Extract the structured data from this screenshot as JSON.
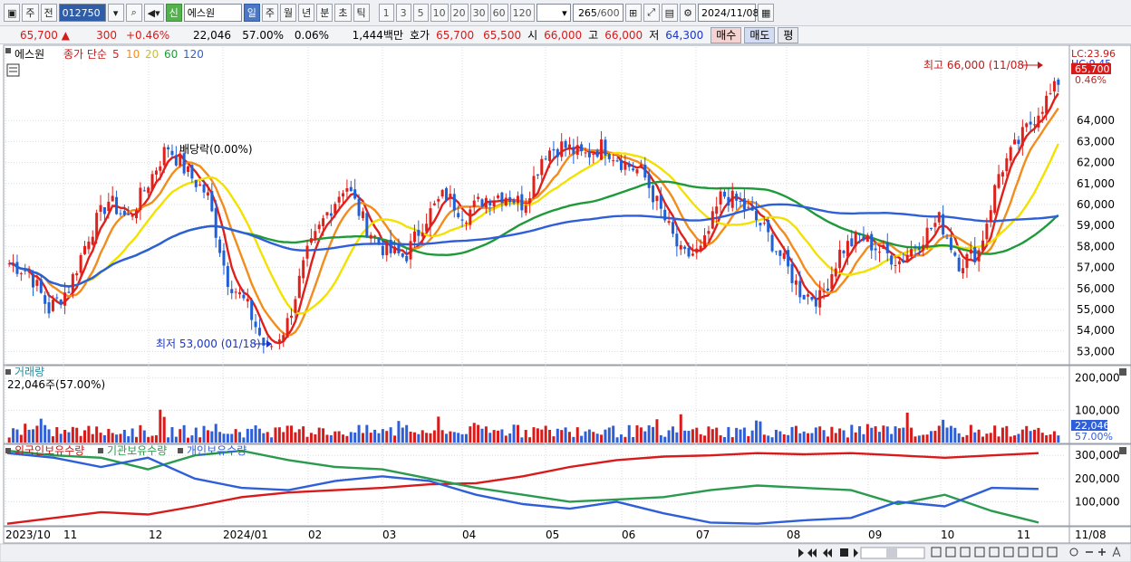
{
  "toolbar": {
    "market_label": "주",
    "mode_label": "전",
    "stock_code": "012750",
    "credit_badge": "신",
    "stock_name": "에스원",
    "periods": [
      "일",
      "주",
      "월",
      "년",
      "분",
      "초",
      "틱"
    ],
    "active_period": "일",
    "intervals": [
      "1",
      "3",
      "5",
      "10",
      "20",
      "30",
      "60",
      "120"
    ],
    "count_value": "265",
    "count_total": "/600",
    "date_value": "2024/11/08"
  },
  "quote": {
    "price": "65,700",
    "change": "300",
    "change_pct": "+0.46%",
    "volume": "22,046",
    "volume_ratio": "57.00%",
    "turnover": "0.06%",
    "amount": "1,444백만",
    "bid_label": "호가",
    "bid1": "65,700",
    "bid2": "65,500",
    "open_label": "시",
    "open": "66,000",
    "high_label": "고",
    "high": "66,000",
    "low_label": "저",
    "low": "64,300",
    "buy_label": "매수",
    "sell_label": "매도",
    "eval_label": "평"
  },
  "price_panel": {
    "legend_name": "에스원",
    "legend_ma_title": "종가 단순",
    "ma_periods": [
      "5",
      "10",
      "20",
      "60",
      "120"
    ],
    "ma_colors": [
      "#e0201b",
      "#f28c1c",
      "#f3e100",
      "#1f9a3a",
      "#2f5fd8"
    ],
    "lc_label": "LC:23.96",
    "hc_label": "HC:9.45",
    "price_tag": "65,700",
    "pct_tag": "0.46%",
    "high_annotation": "최고 66,000 (11/08)",
    "low_annotation": "최저 53,000 (01/18)",
    "dividend_annotation": "배당락(0.00%)"
  },
  "volume_panel": {
    "title": "거래량",
    "info": "22,046주(57.00%)",
    "tag": "22,046",
    "pct_tag": "57.00%"
  },
  "holdings_panel": {
    "series_labels": [
      "외국인보유수량",
      "기관보유수량",
      "개인보유수량"
    ]
  },
  "x_axis": {
    "ticks": [
      "2023/10",
      "11",
      "12",
      "2024/01",
      "02",
      "03",
      "04",
      "05",
      "06",
      "07",
      "08",
      "09",
      "10",
      "11"
    ],
    "last_label": "11/08"
  },
  "chart_data": [
    {
      "type": "candlestick",
      "ylim": [
        52500,
        67500
      ],
      "yticks": [
        53000,
        54000,
        55000,
        56000,
        57000,
        58000,
        59000,
        60000,
        61000,
        62000,
        63000,
        64000
      ],
      "close_series": [
        [
          "2023/10",
          57200
        ],
        [
          "2023/10",
          56800
        ],
        [
          "2023/11",
          55000
        ],
        [
          "2023/11",
          56000
        ],
        [
          "2023/11",
          58500
        ],
        [
          "2023/11",
          60200
        ],
        [
          "2023/11",
          59300
        ],
        [
          "2023/12",
          61000
        ],
        [
          "2023/12",
          62800
        ],
        [
          "2023/12",
          61500
        ],
        [
          "2023/12",
          60500
        ],
        [
          "2024/01",
          56500
        ],
        [
          "2024/01",
          55200
        ],
        [
          "2024/01",
          53000
        ],
        [
          "2024/01",
          54200
        ],
        [
          "2024/02",
          57500
        ],
        [
          "2024/02",
          59500
        ],
        [
          "2024/02",
          61000
        ],
        [
          "2024/02",
          59000
        ],
        [
          "2024/03",
          57800
        ],
        [
          "2024/03",
          57500
        ],
        [
          "2024/03",
          59300
        ],
        [
          "2024/03",
          60500
        ],
        [
          "2024/04",
          59500
        ],
        [
          "2024/04",
          60300
        ],
        [
          "2024/04",
          60500
        ],
        [
          "2024/04",
          60000
        ],
        [
          "2024/05",
          62500
        ],
        [
          "2024/05",
          62800
        ],
        [
          "2024/05",
          62300
        ],
        [
          "2024/05",
          62800
        ],
        [
          "2024/06",
          62000
        ],
        [
          "2024/06",
          61500
        ],
        [
          "2024/06",
          59500
        ],
        [
          "2024/06",
          57500
        ],
        [
          "2024/07",
          57800
        ],
        [
          "2024/07",
          60500
        ],
        [
          "2024/07",
          60000
        ],
        [
          "2024/07",
          59000
        ],
        [
          "2024/08",
          57500
        ],
        [
          "2024/08",
          55800
        ],
        [
          "2024/08",
          55500
        ],
        [
          "2024/08",
          57800
        ],
        [
          "2024/09",
          58500
        ],
        [
          "2024/09",
          57800
        ],
        [
          "2024/09",
          57300
        ],
        [
          "2024/09",
          58300
        ],
        [
          "2024/10",
          59300
        ],
        [
          "2024/10",
          57200
        ],
        [
          "2024/10",
          57800
        ],
        [
          "2024/10",
          61500
        ],
        [
          "2024/11",
          63000
        ],
        [
          "2024/11",
          64500
        ],
        [
          "2024/11",
          65700
        ]
      ],
      "high": {
        "value": 66000,
        "date": "11/08"
      },
      "low": {
        "value": 53000,
        "date": "01/18"
      }
    },
    {
      "type": "bar",
      "name": "거래량",
      "yticks": [
        100000,
        200000
      ],
      "last_value": 22046
    },
    {
      "type": "line",
      "yticks": [
        100000,
        200000,
        300000
      ],
      "series": [
        {
          "name": "외국인보유수량",
          "color": "#d81a1a",
          "values": [
            5000,
            30000,
            55000,
            45000,
            80000,
            120000,
            140000,
            150000,
            160000,
            175000,
            180000,
            210000,
            250000,
            280000,
            295000,
            300000,
            310000,
            305000,
            310000,
            300000,
            290000,
            300000,
            310000
          ]
        },
        {
          "name": "기관보유수량",
          "color": "#2a9a4e",
          "values": [
            320000,
            300000,
            290000,
            240000,
            300000,
            320000,
            280000,
            250000,
            240000,
            200000,
            160000,
            130000,
            100000,
            110000,
            120000,
            150000,
            170000,
            160000,
            150000,
            90000,
            130000,
            60000,
            10000
          ]
        },
        {
          "name": "개인보유수량",
          "color": "#2f5fd8",
          "values": [
            310000,
            290000,
            250000,
            290000,
            200000,
            160000,
            150000,
            190000,
            210000,
            190000,
            130000,
            90000,
            70000,
            100000,
            50000,
            10000,
            5000,
            20000,
            30000,
            100000,
            80000,
            160000,
            155000
          ]
        }
      ]
    }
  ]
}
